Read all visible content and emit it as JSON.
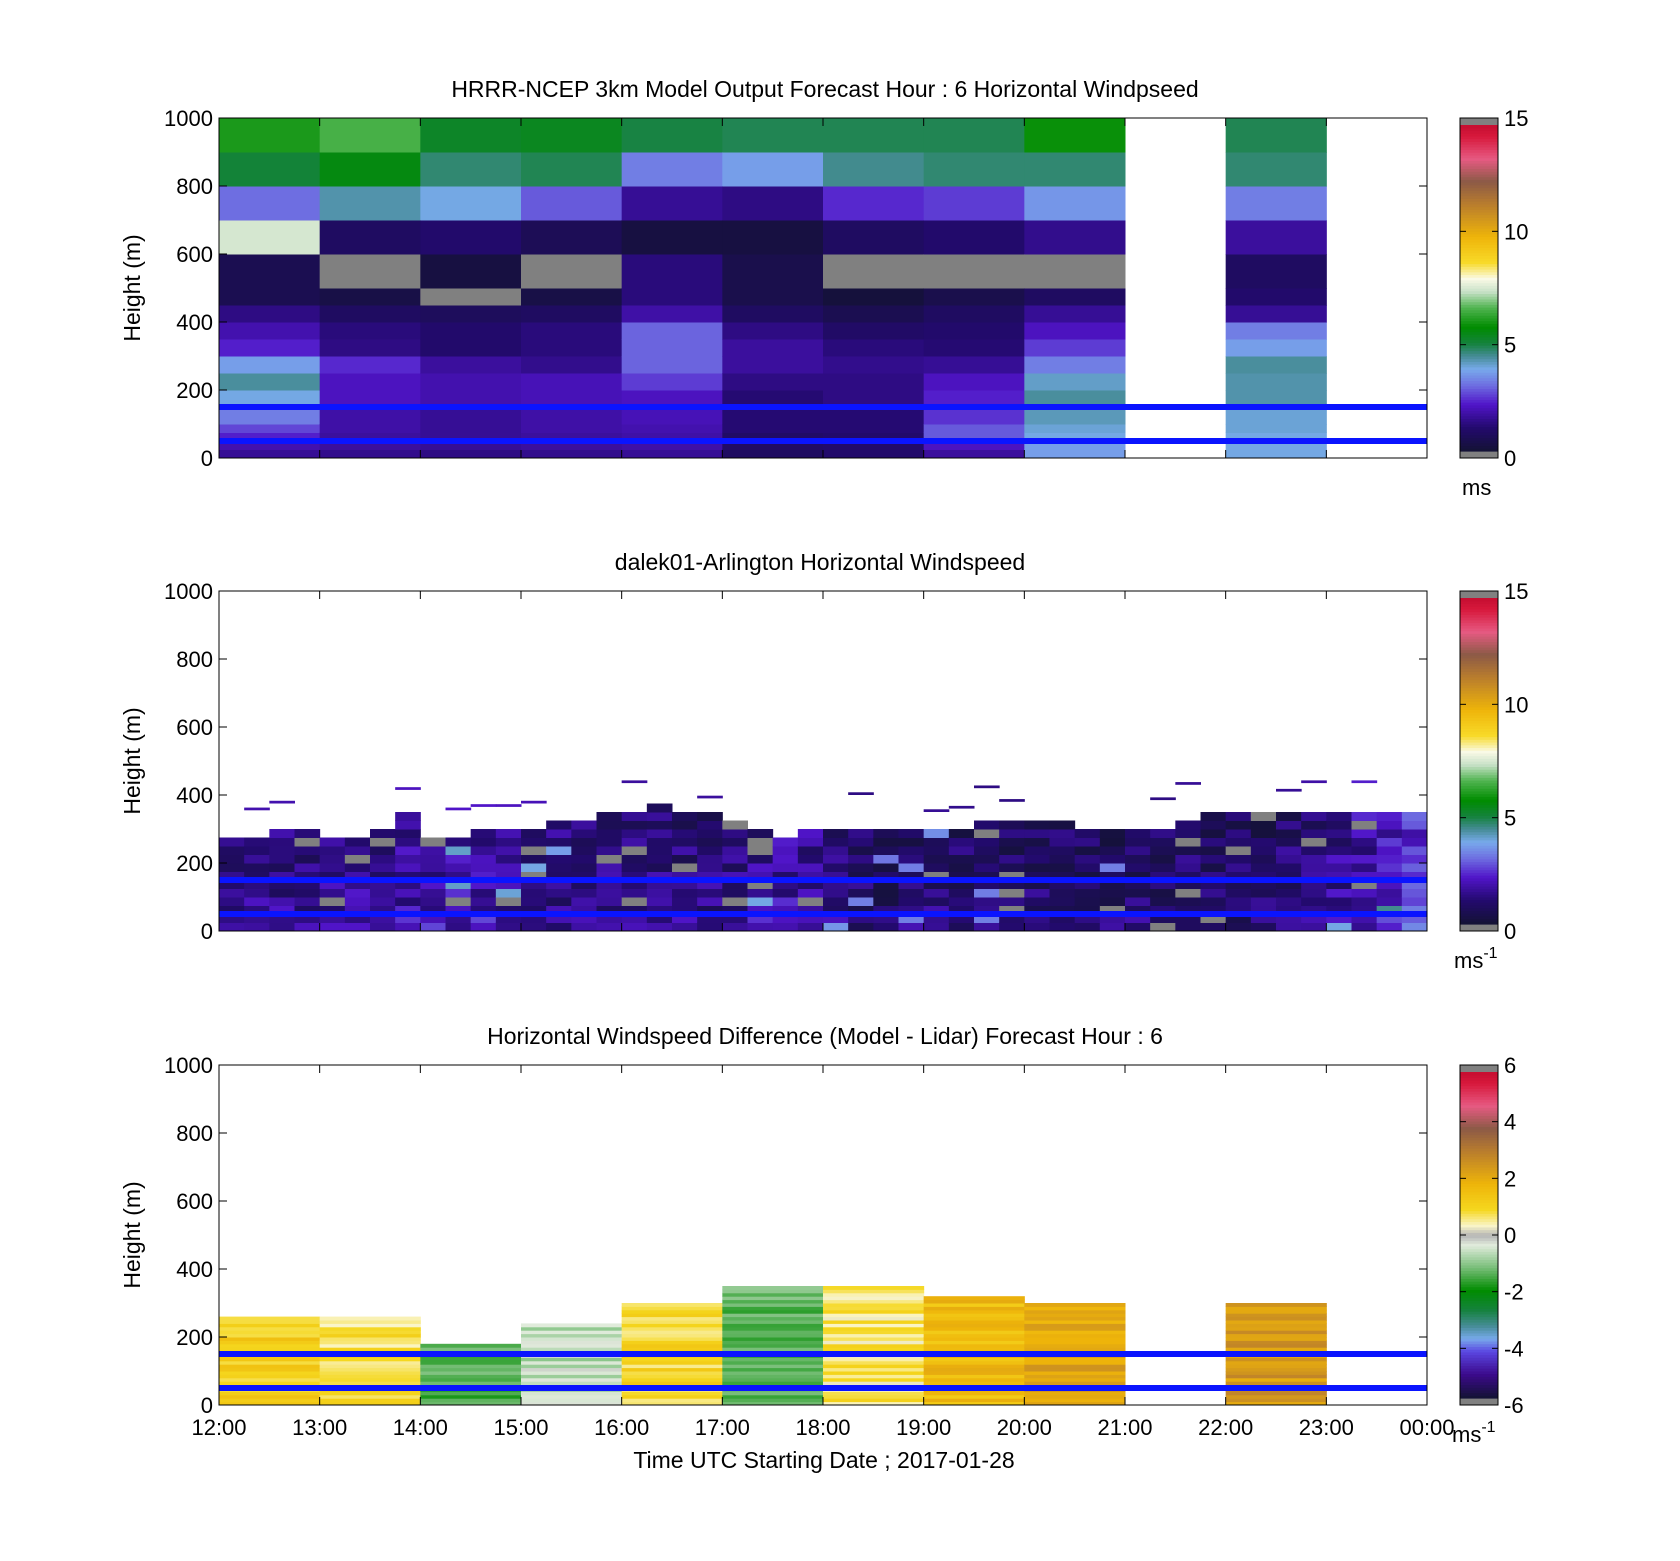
{
  "figure": {
    "xlabel": "Time UTC  Starting Date ; 2017-01-28",
    "ylabel": "Height (m)"
  },
  "chart_data": [
    {
      "type": "heatmap",
      "title": "HRRR-NCEP 3km Model Output   Forecast Hour : 6 Horizontal Windpseed",
      "ylabel": "Height (m)",
      "ylim": [
        0,
        1000
      ],
      "yticks": [
        "0",
        "200",
        "400",
        "600",
        "800",
        "1000"
      ],
      "xlim": [
        12,
        24
      ],
      "colorbar": {
        "min": 0,
        "max": 15,
        "ticks": [
          "0",
          "5",
          "10",
          "15"
        ],
        "unit": "ms",
        "unit_sup": ""
      },
      "reference_lines_m": [
        50,
        150
      ],
      "hours": [
        12,
        13,
        14,
        15,
        16,
        17,
        18,
        19,
        20,
        21,
        22,
        23
      ],
      "levels_m": [
        0,
        25,
        50,
        75,
        100,
        150,
        200,
        250,
        300,
        350,
        400,
        450,
        500,
        600,
        700,
        800,
        900,
        1000
      ],
      "values": [
        [
          1.5,
          1.8,
          2.2,
          2.6,
          3.2,
          3.8,
          4.3,
          3.6,
          2.2,
          1.8,
          1.3,
          0.5,
          0.5,
          7.5,
          3.0,
          5.0,
          6.0
        ],
        [
          1.4,
          1.6,
          1.6,
          1.7,
          1.7,
          2.0,
          2.0,
          2.3,
          1.3,
          1.2,
          0.8,
          0.3,
          15.5,
          0.8,
          4.2,
          5.5,
          6.5
        ],
        [
          1.3,
          1.5,
          1.5,
          1.5,
          1.5,
          1.8,
          1.8,
          1.6,
          1.0,
          1.0,
          0.7,
          15.5,
          0.2,
          1.0,
          3.8,
          4.6,
          5.2
        ],
        [
          1.4,
          1.6,
          1.6,
          1.7,
          1.7,
          1.9,
          1.9,
          1.4,
          1.2,
          1.2,
          0.8,
          0.3,
          15.5,
          0.6,
          2.8,
          4.8,
          5.3
        ],
        [
          1.5,
          1.7,
          1.7,
          1.8,
          1.9,
          2.0,
          2.5,
          2.9,
          2.9,
          2.9,
          1.7,
          1.2,
          1.2,
          0.2,
          1.5,
          3.2,
          4.9
        ],
        [
          0.8,
          0.9,
          0.9,
          1.1,
          1.1,
          1.1,
          1.3,
          1.6,
          1.6,
          1.3,
          0.8,
          0.4,
          0.4,
          0.2,
          1.3,
          3.6,
          4.8
        ],
        [
          1.0,
          1.0,
          1.0,
          1.1,
          1.1,
          1.3,
          1.3,
          1.4,
          1.2,
          0.9,
          0.5,
          0.1,
          15.5,
          0.8,
          2.3,
          4.4,
          4.8
        ],
        [
          1.6,
          2.0,
          2.8,
          2.8,
          2.4,
          2.2,
          2.0,
          1.5,
          1.1,
          1.0,
          0.8,
          0.4,
          15.5,
          1.0,
          2.5,
          4.6,
          4.8
        ],
        [
          3.6,
          3.6,
          3.8,
          3.9,
          4.1,
          4.3,
          4.0,
          3.2,
          2.5,
          2.0,
          1.5,
          0.8,
          15.5,
          1.4,
          3.5,
          4.6,
          5.8
        ],
        [
          null,
          null,
          null,
          null,
          null,
          null,
          null,
          null,
          null,
          null,
          null,
          null,
          null,
          null,
          null,
          null,
          null
        ],
        [
          3.8,
          3.8,
          3.8,
          3.9,
          3.9,
          4.2,
          4.2,
          4.3,
          3.6,
          3.2,
          1.5,
          1.0,
          0.8,
          1.6,
          3.2,
          4.6,
          4.8
        ],
        [
          null,
          null,
          null,
          null,
          null,
          null,
          null,
          null,
          null,
          null,
          null,
          null,
          null,
          null,
          null,
          null,
          null
        ]
      ]
    },
    {
      "type": "heatmap",
      "title": "dalek01-Arlington  Horizontal Windspeed",
      "ylabel": "Height (m)",
      "ylim": [
        0,
        1000
      ],
      "yticks": [
        "0",
        "200",
        "400",
        "600",
        "800",
        "1000"
      ],
      "xlim": [
        12,
        24
      ],
      "colorbar": {
        "min": 0,
        "max": 15,
        "ticks": [
          "0",
          "5",
          "10",
          "15"
        ],
        "unit": "ms",
        "unit_sup": "-1"
      },
      "reference_lines_m": [
        50,
        150
      ],
      "time_step_h": 0.25,
      "height_step_m": 25,
      "top_m": [
        280,
        280,
        300,
        290,
        270,
        280,
        300,
        340,
        280,
        280,
        290,
        290,
        300,
        330,
        330,
        350,
        360,
        380,
        360,
        340,
        320,
        300,
        280,
        290,
        300,
        300,
        300,
        290,
        300,
        310,
        320,
        330,
        320,
        320,
        310,
        300,
        300,
        310,
        330,
        340,
        340,
        350,
        360,
        360,
        360,
        360,
        360,
        360
      ],
      "mean": [
        1.5,
        1.5,
        1.5,
        1.5,
        1.6,
        1.7,
        1.6,
        1.7,
        1.8,
        1.8,
        1.8,
        1.7,
        1.6,
        1.4,
        1.4,
        1.4,
        1.3,
        1.4,
        1.3,
        1.3,
        1.4,
        1.6,
        1.8,
        1.7,
        1.3,
        1.0,
        0.9,
        1.0,
        1.2,
        1.1,
        1.0,
        1.0,
        1.0,
        1.0,
        1.0,
        1.0,
        1.0,
        1.0,
        1.2,
        1.0,
        0.9,
        1.0,
        1.2,
        1.4,
        1.6,
        1.9,
        2.2,
        2.6
      ]
    },
    {
      "type": "heatmap",
      "title": "Horizontal Windspeed Difference (Model - Lidar) Forecast Hour : 6",
      "ylabel": "Height (m)",
      "xlabel": "Time UTC  Starting Date ; 2017-01-28",
      "ylim": [
        0,
        1000
      ],
      "yticks": [
        "0",
        "200",
        "400",
        "600",
        "800",
        "1000"
      ],
      "xlim": [
        12,
        24
      ],
      "xticks": [
        "12:00",
        "13:00",
        "14:00",
        "15:00",
        "16:00",
        "17:00",
        "18:00",
        "19:00",
        "20:00",
        "21:00",
        "22:00",
        "23:00",
        "00:00"
      ],
      "colorbar": {
        "min": -6,
        "max": 6,
        "ticks": [
          "-6",
          "-4",
          "-2",
          "0",
          "2",
          "4",
          "6"
        ],
        "unit": "ms",
        "unit_sup": "-1"
      },
      "reference_lines_m": [
        50,
        150
      ],
      "hours": [
        12,
        13,
        14,
        15,
        16,
        17,
        18,
        19,
        20,
        21,
        22,
        23
      ],
      "top_m": [
        260,
        260,
        180,
        240,
        300,
        350,
        350,
        320,
        300,
        null,
        300,
        null
      ],
      "diff_ms": [
        1.2,
        0.8,
        -1.5,
        -0.6,
        1.0,
        -1.3,
        0.7,
        1.7,
        2.2,
        null,
        2.5,
        null
      ]
    }
  ]
}
